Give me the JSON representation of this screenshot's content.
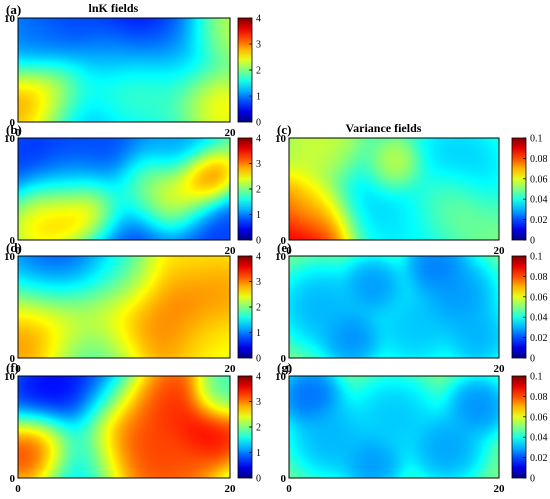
{
  "chart_data": [
    {
      "id": "a",
      "type": "heatmap",
      "panel_label": "(a)",
      "title": "lnK fields",
      "x_ticks": [
        "0",
        "20"
      ],
      "y_ticks": [
        "0",
        "10"
      ],
      "xlim": [
        0,
        20
      ],
      "ylim": [
        0,
        10
      ],
      "colorbar": {
        "min": 0,
        "max": 4,
        "ticks": [
          "0",
          "1",
          "2",
          "3",
          "4"
        ]
      },
      "blobs": [
        [
          4,
          8,
          0.5,
          3
        ],
        [
          12,
          8,
          0.1,
          3
        ],
        [
          15,
          7,
          1,
          2.5
        ],
        [
          9,
          6,
          1,
          2
        ],
        [
          16,
          3,
          1,
          3
        ],
        [
          18,
          2,
          3.5,
          2
        ],
        [
          3,
          2.5,
          3.5,
          2.5
        ],
        [
          10,
          2.5,
          2.8,
          3
        ],
        [
          14,
          2.5,
          2.5,
          3
        ],
        [
          6,
          1,
          0.5,
          2.5
        ],
        [
          11,
          0.5,
          0.5,
          3
        ],
        [
          2,
          8,
          1,
          2
        ],
        [
          19,
          8,
          2.5,
          2
        ]
      ]
    },
    {
      "id": "b",
      "type": "heatmap",
      "panel_label": "(b)",
      "title": "",
      "x_ticks": [
        "0",
        "20"
      ],
      "y_ticks": [
        "0",
        "10"
      ],
      "xlim": [
        0,
        20
      ],
      "ylim": [
        0,
        10
      ],
      "colorbar": {
        "min": 0,
        "max": 4,
        "ticks": [
          "0",
          "1",
          "2",
          "3",
          "4"
        ]
      },
      "blobs": [
        [
          2,
          8,
          0.5,
          3
        ],
        [
          8,
          8,
          0.6,
          3
        ],
        [
          17.5,
          6,
          3.5,
          1.5
        ],
        [
          6.5,
          3,
          3.8,
          2
        ],
        [
          15,
          4,
          3,
          2
        ],
        [
          12,
          5,
          2.5,
          2
        ],
        [
          3,
          3,
          3,
          2
        ],
        [
          10,
          1,
          0.5,
          3
        ],
        [
          18,
          1,
          0.5,
          2.5
        ],
        [
          5,
          6,
          1.2,
          2
        ],
        [
          15,
          8.5,
          1,
          2
        ]
      ]
    },
    {
      "id": "c",
      "type": "heatmap",
      "panel_label": "(c)",
      "title": "Variance fields",
      "x_ticks": [
        "0",
        "20"
      ],
      "y_ticks": [
        "0",
        "10"
      ],
      "xlim": [
        0,
        20
      ],
      "ylim": [
        0,
        10
      ],
      "colorbar": {
        "min": 0,
        "max": 0.1,
        "ticks": [
          "0",
          "0.02",
          "0.04",
          "0.06",
          "0.08",
          "0.1"
        ]
      },
      "blobs": [
        [
          1.5,
          1,
          0.1,
          2.5
        ],
        [
          10,
          7,
          0.07,
          1.5
        ],
        [
          4,
          8.5,
          0.06,
          2
        ],
        [
          15,
          3.5,
          0.055,
          2
        ],
        [
          8,
          4.5,
          0.03,
          3
        ],
        [
          16,
          7,
          0.03,
          2.5
        ],
        [
          12,
          2,
          0.035,
          2.5
        ],
        [
          2,
          3,
          0.06,
          1.8
        ]
      ]
    },
    {
      "id": "d",
      "type": "heatmap",
      "panel_label": "(d)",
      "title": "",
      "x_ticks": [
        "0",
        "20"
      ],
      "y_ticks": [
        "0",
        "10"
      ],
      "xlim": [
        0,
        20
      ],
      "ylim": [
        0,
        10
      ],
      "colorbar": {
        "min": 0,
        "max": 4,
        "ticks": [
          "0",
          "1",
          "2",
          "3",
          "4"
        ]
      },
      "blobs": [
        [
          4,
          8,
          0.5,
          3
        ],
        [
          10,
          8,
          1,
          2.5
        ],
        [
          13,
          6.5,
          3.3,
          3
        ],
        [
          18,
          6,
          3,
          2.5
        ],
        [
          3,
          3,
          3.3,
          3
        ],
        [
          9,
          3,
          3,
          3
        ],
        [
          14,
          3,
          3,
          2.5
        ],
        [
          18,
          2,
          2.5,
          2
        ],
        [
          7,
          0.8,
          1,
          2.5
        ],
        [
          16,
          9.5,
          2.5,
          2
        ]
      ]
    },
    {
      "id": "e",
      "type": "heatmap",
      "panel_label": "(e)",
      "title": "",
      "x_ticks": [
        "0",
        "20"
      ],
      "y_ticks": [
        "0",
        "10"
      ],
      "xlim": [
        0,
        20
      ],
      "ylim": [
        0,
        10
      ],
      "colorbar": {
        "min": 0,
        "max": 0.1,
        "ticks": [
          "0",
          "0.02",
          "0.04",
          "0.06",
          "0.08",
          "0.1"
        ]
      },
      "blobs": [
        [
          3,
          5,
          0.028,
          2
        ],
        [
          8,
          7,
          0.025,
          1.5
        ],
        [
          12,
          3,
          0.03,
          2
        ],
        [
          16,
          6,
          0.025,
          2
        ],
        [
          18,
          2,
          0.028,
          1.5
        ],
        [
          6,
          2,
          0.024,
          1.5
        ],
        [
          14,
          9,
          0.022,
          1.5
        ]
      ]
    },
    {
      "id": "f",
      "type": "heatmap",
      "panel_label": "(f)",
      "title": "",
      "x_ticks": [
        "0",
        "20"
      ],
      "y_ticks": [
        "0",
        "10"
      ],
      "xlim": [
        0,
        20
      ],
      "ylim": [
        0,
        10
      ],
      "colorbar": {
        "min": 0,
        "max": 4,
        "ticks": [
          "0",
          "1",
          "2",
          "3",
          "4"
        ]
      },
      "blobs": [
        [
          3,
          8,
          0.3,
          2.5
        ],
        [
          8,
          9.5,
          0.3,
          2.5
        ],
        [
          11,
          7.5,
          3.3,
          2.5
        ],
        [
          14,
          7.5,
          3.5,
          2.2
        ],
        [
          18,
          5,
          3.7,
          2
        ],
        [
          2,
          3,
          3.8,
          2
        ],
        [
          10,
          3,
          3.5,
          2.5
        ],
        [
          14.5,
          1.5,
          3.3,
          2
        ],
        [
          6,
          2,
          1,
          2.5
        ],
        [
          19,
          8,
          1.5,
          1.5
        ]
      ]
    },
    {
      "id": "g",
      "type": "heatmap",
      "panel_label": "(g)",
      "title": "",
      "x_ticks": [
        "0",
        "20"
      ],
      "y_ticks": [
        "0",
        "10"
      ],
      "xlim": [
        0,
        20
      ],
      "ylim": [
        0,
        10
      ],
      "colorbar": {
        "min": 0,
        "max": 0.1,
        "ticks": [
          "0",
          "0.02",
          "0.04",
          "0.06",
          "0.08",
          "0.1"
        ]
      },
      "blobs": [
        [
          4,
          4,
          0.028,
          2
        ],
        [
          10,
          6,
          0.03,
          2
        ],
        [
          15,
          3,
          0.026,
          1.8
        ],
        [
          18,
          7,
          0.024,
          1.5
        ],
        [
          2,
          8,
          0.02,
          1.5
        ],
        [
          8,
          1.5,
          0.025,
          1.5
        ]
      ]
    }
  ]
}
